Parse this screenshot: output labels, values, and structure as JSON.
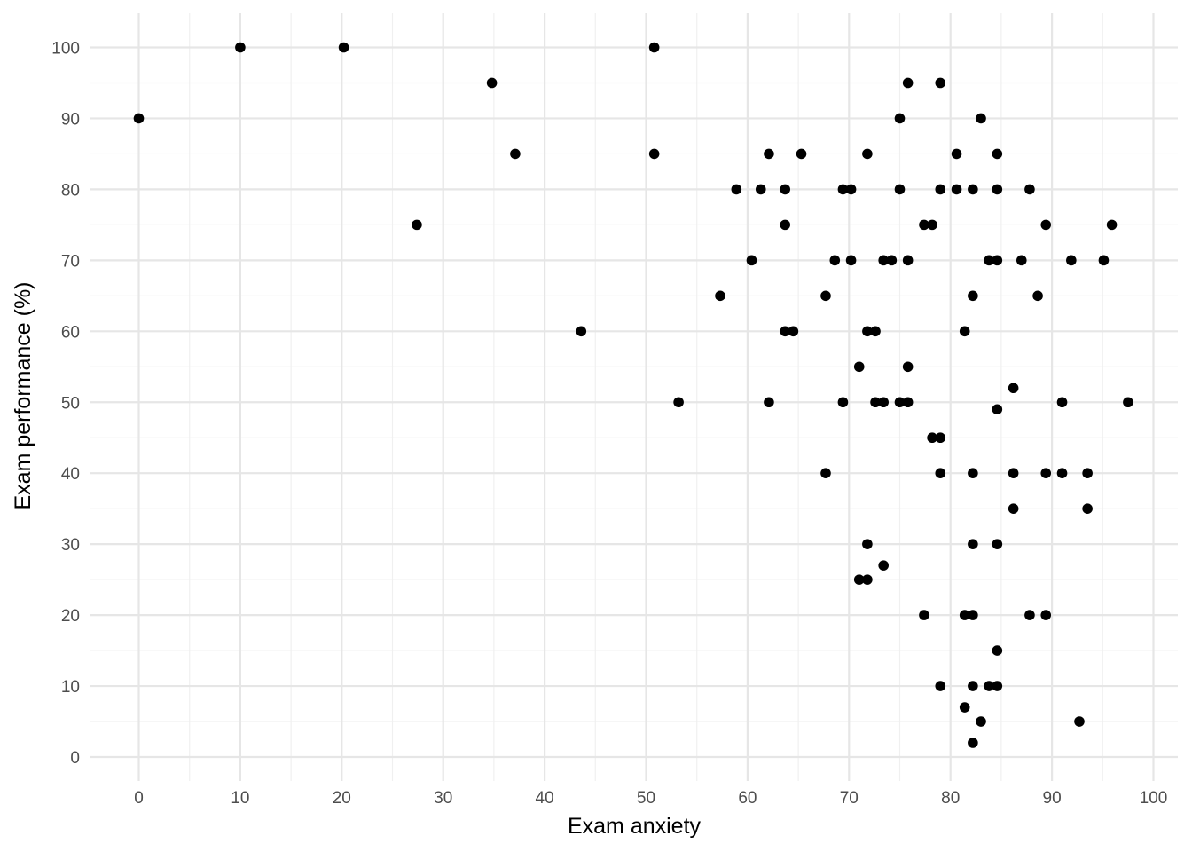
{
  "chart_data": {
    "type": "scatter",
    "title": "",
    "xlabel": "Exam anxiety",
    "ylabel": "Exam performance (%)",
    "xlim": [
      0,
      100
    ],
    "ylim": [
      0,
      100
    ],
    "x_ticks": [
      0,
      10,
      20,
      30,
      40,
      50,
      60,
      70,
      80,
      90,
      100
    ],
    "y_ticks": [
      0,
      10,
      20,
      30,
      40,
      50,
      60,
      70,
      80,
      90,
      100
    ],
    "grid": true,
    "legend": "none",
    "point_color": "#000000",
    "points": [
      [
        0,
        90
      ],
      [
        10,
        100
      ],
      [
        20.2,
        100
      ],
      [
        27.4,
        75
      ],
      [
        34.8,
        95
      ],
      [
        37.1,
        85
      ],
      [
        43.6,
        60
      ],
      [
        50.8,
        100
      ],
      [
        50.8,
        85
      ],
      [
        53.2,
        50
      ],
      [
        57.3,
        65
      ],
      [
        58.9,
        80
      ],
      [
        60.4,
        70
      ],
      [
        61.3,
        80
      ],
      [
        62.1,
        85
      ],
      [
        62.1,
        50
      ],
      [
        63.7,
        80
      ],
      [
        63.7,
        75
      ],
      [
        63.7,
        60
      ],
      [
        64.5,
        60
      ],
      [
        65.3,
        85
      ],
      [
        67.7,
        65
      ],
      [
        67.7,
        40
      ],
      [
        68.6,
        70
      ],
      [
        69.4,
        80
      ],
      [
        69.4,
        50
      ],
      [
        70.2,
        80
      ],
      [
        70.2,
        70
      ],
      [
        71.0,
        55
      ],
      [
        71.0,
        25
      ],
      [
        71.8,
        85
      ],
      [
        71.8,
        60
      ],
      [
        71.8,
        30
      ],
      [
        71.8,
        25
      ],
      [
        72.6,
        60
      ],
      [
        72.6,
        50
      ],
      [
        73.4,
        70
      ],
      [
        73.4,
        50
      ],
      [
        73.4,
        27
      ],
      [
        74.2,
        70
      ],
      [
        75.0,
        90
      ],
      [
        75.0,
        80
      ],
      [
        75.0,
        50
      ],
      [
        75.8,
        95
      ],
      [
        75.8,
        70
      ],
      [
        75.8,
        55
      ],
      [
        75.8,
        50
      ],
      [
        77.4,
        75
      ],
      [
        77.4,
        20
      ],
      [
        78.2,
        75
      ],
      [
        78.2,
        45
      ],
      [
        79.0,
        95
      ],
      [
        79.0,
        80
      ],
      [
        79.0,
        45
      ],
      [
        79.0,
        40
      ],
      [
        79.0,
        10
      ],
      [
        80.6,
        85
      ],
      [
        80.6,
        80
      ],
      [
        81.4,
        60
      ],
      [
        81.4,
        20
      ],
      [
        81.4,
        7
      ],
      [
        82.2,
        80
      ],
      [
        82.2,
        65
      ],
      [
        82.2,
        40
      ],
      [
        82.2,
        30
      ],
      [
        82.2,
        20
      ],
      [
        82.2,
        10
      ],
      [
        82.2,
        2
      ],
      [
        83.0,
        90
      ],
      [
        83.0,
        5
      ],
      [
        83.8,
        70
      ],
      [
        83.8,
        10
      ],
      [
        84.6,
        85
      ],
      [
        84.6,
        80
      ],
      [
        84.6,
        70
      ],
      [
        84.6,
        49
      ],
      [
        84.6,
        30
      ],
      [
        84.6,
        15
      ],
      [
        84.6,
        10
      ],
      [
        86.2,
        52
      ],
      [
        86.2,
        40
      ],
      [
        86.2,
        35
      ],
      [
        87.0,
        70
      ],
      [
        87.8,
        80
      ],
      [
        87.8,
        20
      ],
      [
        88.6,
        65
      ],
      [
        89.4,
        75
      ],
      [
        89.4,
        40
      ],
      [
        89.4,
        20
      ],
      [
        91.0,
        50
      ],
      [
        91.0,
        40
      ],
      [
        91.9,
        70
      ],
      [
        92.7,
        5
      ],
      [
        93.5,
        40
      ],
      [
        93.5,
        35
      ],
      [
        95.1,
        70
      ],
      [
        95.9,
        75
      ],
      [
        97.5,
        50
      ]
    ]
  }
}
